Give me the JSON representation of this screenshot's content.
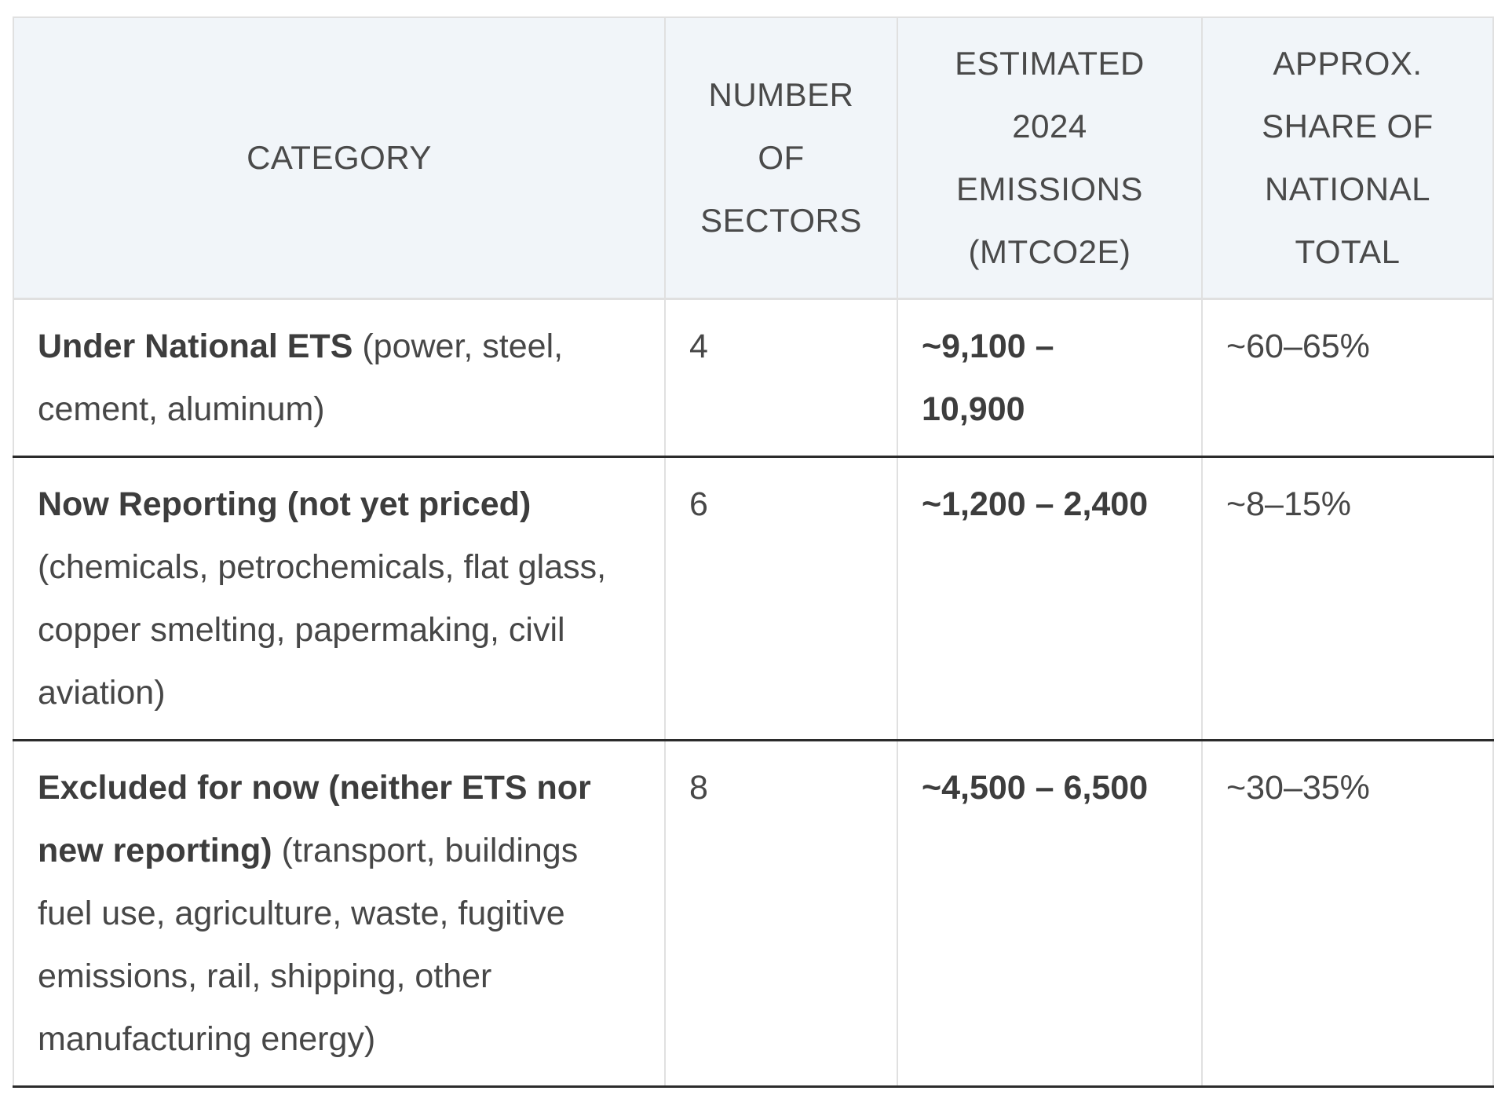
{
  "chart_data": {
    "type": "table",
    "columns": [
      "CATEGORY",
      "NUMBER OF SECTORS",
      "ESTIMATED 2024 EMISSIONS (MTCO2E)",
      "APPROX. SHARE OF NATIONAL TOTAL"
    ],
    "rows": [
      {
        "category_title": "Under National ETS",
        "category_detail": "(power, steel, cement, aluminum)",
        "number_of_sectors": "4",
        "emissions_lines": [
          "~9,100 –",
          "10,900"
        ],
        "share_of_national_total": "~60–65%"
      },
      {
        "category_title": "Now Reporting (not yet priced)",
        "category_detail": "(chemicals, petrochemicals, flat glass, copper smelting, papermaking, civil aviation)",
        "number_of_sectors": "6",
        "emissions_lines": [
          "~1,200 – 2,400"
        ],
        "share_of_national_total": "~8–15%"
      },
      {
        "category_title": "Excluded for now (neither ETS nor new reporting)",
        "category_detail": "(transport, buildings fuel use, agriculture, waste, fugitive emissions, rail, shipping, other manufacturing energy)",
        "number_of_sectors": "8",
        "emissions_lines": [
          "~4,500 – 6,500"
        ],
        "share_of_national_total": "~30–35%"
      }
    ]
  },
  "colors": {
    "header_background": "#f1f5f9",
    "header_text": "#4a4a4a",
    "body_text": "#474747",
    "bold_text": "#3d3d3d",
    "light_border": "#e0e0e0",
    "dark_row_border": "#2b2b2b"
  }
}
